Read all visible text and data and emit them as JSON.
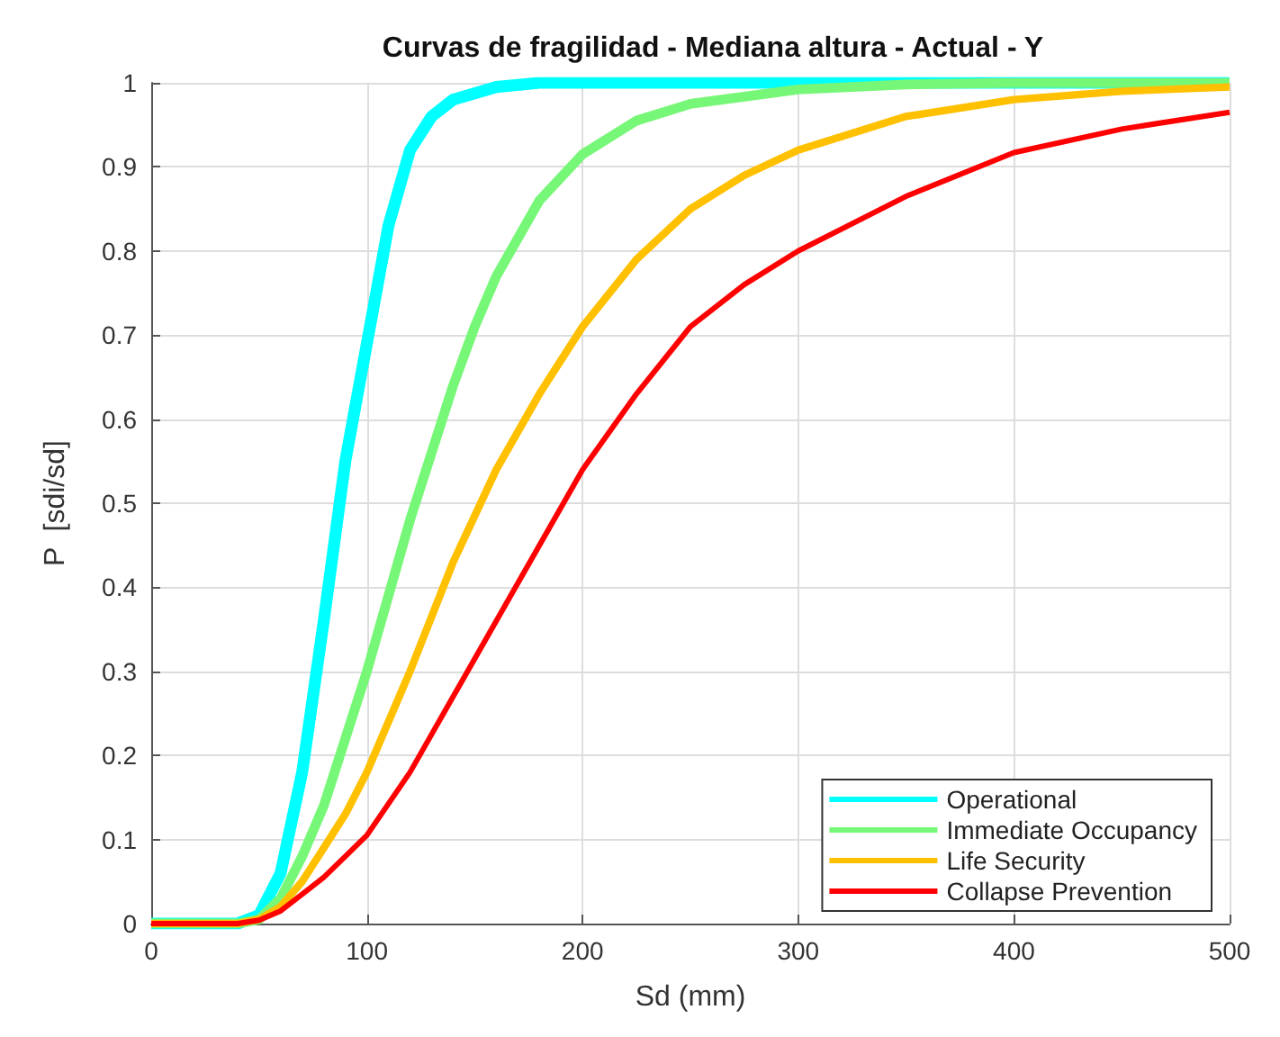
{
  "chart_data": {
    "type": "line",
    "title": "Curvas de fragilidad - Mediana altura - Actual - Y",
    "xlabel": "Sd (mm)",
    "ylabel": "P  [sdi/sd]",
    "xlim": [
      0,
      500
    ],
    "xticks": [
      0,
      100,
      200,
      300,
      400,
      500
    ],
    "ylim": [
      0,
      1
    ],
    "yticks": [
      0,
      0.1,
      0.2,
      0.3,
      0.4,
      0.5,
      0.6,
      0.7,
      0.8,
      0.9,
      1
    ],
    "grid": true,
    "legend": "bottom right",
    "marker": "none",
    "line_style": "solid",
    "series": [
      {
        "name": "Operational",
        "color": "#00ffff",
        "x": [
          0,
          40,
          50,
          60,
          70,
          80,
          90,
          100,
          110,
          120,
          130,
          140,
          160,
          180,
          500
        ],
        "values": [
          0,
          0,
          0.01,
          0.06,
          0.18,
          0.36,
          0.55,
          0.69,
          0.83,
          0.92,
          0.96,
          0.98,
          0.995,
          1,
          1
        ]
      },
      {
        "name": "Immediate Occupancy",
        "color": "#77f777",
        "x": [
          0,
          40,
          50,
          60,
          70,
          80,
          90,
          100,
          110,
          120,
          130,
          140,
          150,
          160,
          180,
          200,
          225,
          250,
          300,
          350,
          400,
          500
        ],
        "values": [
          0,
          0,
          0.005,
          0.03,
          0.08,
          0.14,
          0.22,
          0.3,
          0.39,
          0.48,
          0.56,
          0.64,
          0.71,
          0.77,
          0.86,
          0.915,
          0.955,
          0.975,
          0.992,
          0.998,
          1,
          1
        ]
      },
      {
        "name": "Life Security",
        "color": "#ffc000",
        "x": [
          0,
          40,
          50,
          60,
          70,
          80,
          90,
          100,
          120,
          140,
          160,
          180,
          200,
          225,
          250,
          275,
          300,
          350,
          400,
          450,
          500
        ],
        "values": [
          0,
          0,
          0.005,
          0.02,
          0.05,
          0.09,
          0.13,
          0.18,
          0.3,
          0.43,
          0.54,
          0.63,
          0.71,
          0.79,
          0.85,
          0.89,
          0.92,
          0.96,
          0.98,
          0.99,
          0.995
        ]
      },
      {
        "name": "Collapse Prevention",
        "color": "#ff0000",
        "x": [
          0,
          40,
          50,
          60,
          70,
          80,
          90,
          100,
          120,
          140,
          160,
          180,
          200,
          225,
          250,
          275,
          300,
          350,
          400,
          450,
          500
        ],
        "values": [
          0,
          0,
          0.004,
          0.015,
          0.035,
          0.055,
          0.08,
          0.105,
          0.18,
          0.27,
          0.36,
          0.45,
          0.54,
          0.63,
          0.71,
          0.76,
          0.8,
          0.865,
          0.917,
          0.945,
          0.965
        ]
      }
    ]
  }
}
